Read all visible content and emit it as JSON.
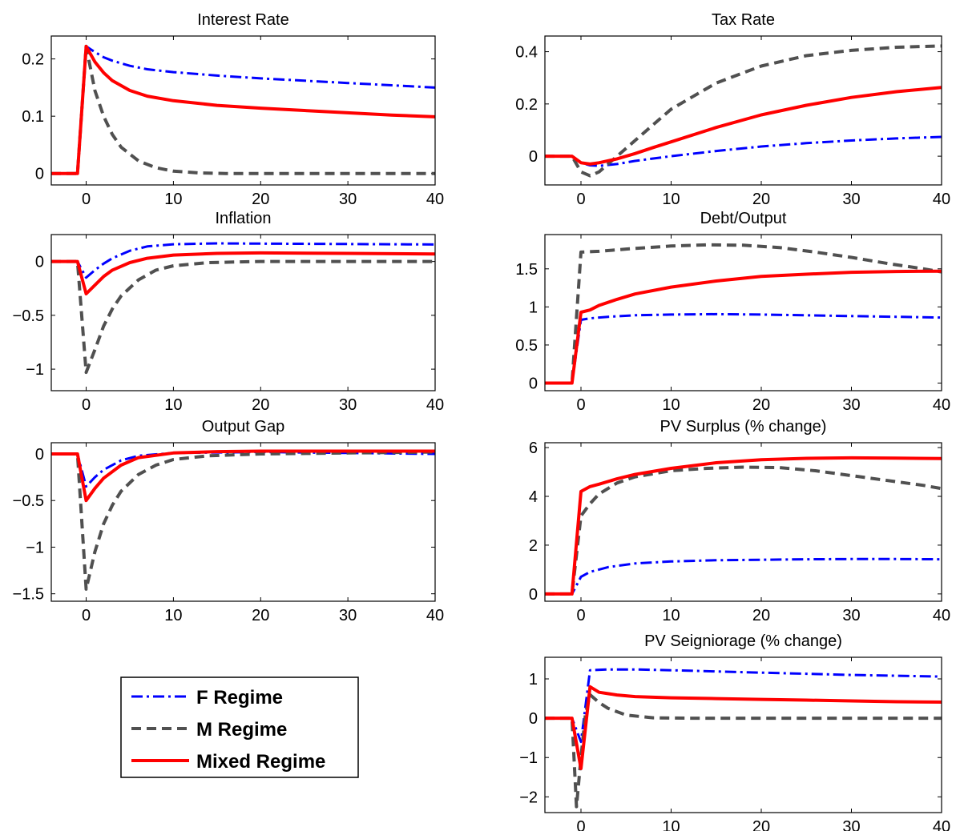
{
  "colors": {
    "f_regime": "#0000ff",
    "m_regime": "#505050",
    "mixed_regime": "#ff0000"
  },
  "legend": {
    "entries": [
      {
        "label": "F Regime",
        "series": "f",
        "style": "dash-dot"
      },
      {
        "label": "M Regime",
        "series": "m",
        "style": "dashed"
      },
      {
        "label": "Mixed Regime",
        "series": "mixed",
        "style": "solid"
      }
    ]
  },
  "chart_data": [
    {
      "type": "line",
      "title": "Interest Rate",
      "xlim": [
        -4,
        40
      ],
      "ylim": [
        -0.02,
        0.24
      ],
      "xticks": [
        0,
        10,
        20,
        30,
        40
      ],
      "yticks": [
        0,
        0.1,
        0.2
      ],
      "ytick_labels": [
        "0",
        "0.1",
        "0.2"
      ],
      "series": [
        {
          "key": "f",
          "x": [
            -4,
            -1,
            0,
            1,
            2,
            3,
            5,
            7,
            10,
            15,
            20,
            25,
            30,
            35,
            40
          ],
          "y": [
            0,
            0,
            0.222,
            0.212,
            0.203,
            0.197,
            0.188,
            0.182,
            0.177,
            0.171,
            0.166,
            0.162,
            0.158,
            0.154,
            0.15
          ]
        },
        {
          "key": "m",
          "x": [
            -4,
            -1,
            0,
            1,
            2,
            3,
            4,
            6,
            8,
            10,
            13,
            16,
            20,
            30,
            40
          ],
          "y": [
            0,
            0,
            0.222,
            0.145,
            0.1,
            0.068,
            0.046,
            0.022,
            0.01,
            0.004,
            0.001,
            0,
            0,
            0,
            0
          ]
        },
        {
          "key": "mixed",
          "x": [
            -4,
            -1,
            0,
            1,
            2,
            3,
            5,
            7,
            10,
            15,
            20,
            25,
            30,
            35,
            40
          ],
          "y": [
            0,
            0,
            0.222,
            0.195,
            0.176,
            0.162,
            0.145,
            0.135,
            0.127,
            0.119,
            0.114,
            0.11,
            0.106,
            0.102,
            0.099
          ]
        }
      ]
    },
    {
      "type": "line",
      "title": "Tax Rate",
      "xlim": [
        -4,
        40
      ],
      "ylim": [
        -0.11,
        0.46
      ],
      "xticks": [
        0,
        10,
        20,
        30,
        40
      ],
      "yticks": [
        0,
        0.2,
        0.4
      ],
      "ytick_labels": [
        "0",
        "0.2",
        "0.4"
      ],
      "series": [
        {
          "key": "f",
          "x": [
            -4,
            -1,
            0,
            1,
            2,
            4,
            6,
            10,
            15,
            20,
            25,
            30,
            35,
            40
          ],
          "y": [
            0,
            0,
            -0.025,
            -0.035,
            -0.037,
            -0.03,
            -0.018,
            0.0,
            0.02,
            0.037,
            0.05,
            0.06,
            0.068,
            0.074
          ]
        },
        {
          "key": "m",
          "x": [
            -4,
            -1,
            0,
            1,
            2,
            3,
            4,
            6,
            8,
            10,
            15,
            20,
            25,
            30,
            35,
            40
          ],
          "y": [
            0,
            0,
            -0.06,
            -0.075,
            -0.06,
            -0.03,
            0,
            0.06,
            0.12,
            0.18,
            0.28,
            0.345,
            0.385,
            0.405,
            0.417,
            0.422
          ]
        },
        {
          "key": "mixed",
          "x": [
            -4,
            -1,
            0,
            1,
            2,
            4,
            6,
            8,
            10,
            15,
            20,
            25,
            30,
            35,
            40
          ],
          "y": [
            0,
            0,
            -0.025,
            -0.03,
            -0.025,
            -0.01,
            0.01,
            0.033,
            0.055,
            0.11,
            0.158,
            0.195,
            0.225,
            0.247,
            0.263
          ]
        }
      ]
    },
    {
      "type": "line",
      "title": "Inflation",
      "xlim": [
        -4,
        40
      ],
      "ylim": [
        -1.2,
        0.25
      ],
      "xticks": [
        0,
        10,
        20,
        30,
        40
      ],
      "yticks": [
        -1,
        -0.5,
        0
      ],
      "ytick_labels": [
        "−1",
        "−0.5",
        "0"
      ],
      "series": [
        {
          "key": "f",
          "x": [
            -4,
            -1,
            0,
            1,
            2,
            3,
            5,
            7,
            10,
            15,
            20,
            30,
            40
          ],
          "y": [
            0,
            0,
            -0.15,
            -0.08,
            -0.02,
            0.03,
            0.1,
            0.14,
            0.16,
            0.168,
            0.166,
            0.162,
            0.158
          ]
        },
        {
          "key": "m",
          "x": [
            -4,
            -1,
            0,
            1,
            2,
            3,
            4,
            6,
            8,
            10,
            14,
            20,
            30,
            40
          ],
          "y": [
            0,
            0,
            -1.03,
            -0.82,
            -0.6,
            -0.44,
            -0.32,
            -0.17,
            -0.08,
            -0.04,
            -0.01,
            0,
            0,
            0
          ]
        },
        {
          "key": "mixed",
          "x": [
            -4,
            -1,
            0,
            1,
            2,
            3,
            5,
            7,
            10,
            15,
            20,
            30,
            40
          ],
          "y": [
            0,
            0,
            -0.3,
            -0.22,
            -0.14,
            -0.08,
            -0.01,
            0.03,
            0.06,
            0.075,
            0.08,
            0.075,
            0.07
          ]
        }
      ]
    },
    {
      "type": "line",
      "title": "Debt/Output",
      "xlim": [
        -4,
        40
      ],
      "ylim": [
        -0.1,
        1.95
      ],
      "xticks": [
        0,
        10,
        20,
        30,
        40
      ],
      "yticks": [
        0,
        0.5,
        1,
        1.5
      ],
      "ytick_labels": [
        "0",
        "0.5",
        "1",
        "1.5"
      ],
      "series": [
        {
          "key": "f",
          "x": [
            -4,
            -1,
            0,
            1,
            3,
            6,
            10,
            15,
            20,
            25,
            30,
            35,
            40
          ],
          "y": [
            0,
            0,
            0.83,
            0.85,
            0.87,
            0.89,
            0.9,
            0.905,
            0.9,
            0.89,
            0.88,
            0.87,
            0.86
          ]
        },
        {
          "key": "m",
          "x": [
            -4,
            -1,
            0,
            2,
            5,
            10,
            14,
            18,
            22,
            26,
            30,
            34,
            38,
            40
          ],
          "y": [
            0,
            0,
            1.72,
            1.73,
            1.76,
            1.8,
            1.815,
            1.81,
            1.78,
            1.72,
            1.65,
            1.57,
            1.5,
            1.46
          ]
        },
        {
          "key": "mixed",
          "x": [
            -4,
            -1,
            0,
            1,
            2,
            4,
            6,
            10,
            15,
            20,
            25,
            30,
            35,
            40
          ],
          "y": [
            0,
            0,
            0.93,
            0.96,
            1.02,
            1.1,
            1.17,
            1.26,
            1.34,
            1.4,
            1.43,
            1.455,
            1.465,
            1.47
          ]
        }
      ]
    },
    {
      "type": "line",
      "title": "Output Gap",
      "xlim": [
        -4,
        40
      ],
      "ylim": [
        -1.58,
        0.12
      ],
      "xticks": [
        0,
        10,
        20,
        30,
        40
      ],
      "yticks": [
        -1.5,
        -1,
        -0.5,
        0
      ],
      "ytick_labels": [
        "−1.5",
        "−1",
        "−0.5",
        "0"
      ],
      "series": [
        {
          "key": "f",
          "x": [
            -4,
            -1,
            0,
            1,
            2,
            4,
            6,
            10,
            20,
            30,
            40
          ],
          "y": [
            0,
            0,
            -0.35,
            -0.25,
            -0.17,
            -0.07,
            -0.02,
            0.01,
            0.02,
            0.01,
            0.0
          ]
        },
        {
          "key": "m",
          "x": [
            -4,
            -1,
            0,
            1,
            2,
            3,
            4,
            6,
            8,
            10,
            14,
            20,
            30,
            40
          ],
          "y": [
            0,
            0,
            -1.45,
            -1.05,
            -0.75,
            -0.55,
            -0.4,
            -0.22,
            -0.12,
            -0.06,
            -0.02,
            0.0,
            0.01,
            0.02
          ]
        },
        {
          "key": "mixed",
          "x": [
            -4,
            -1,
            0,
            1,
            2,
            4,
            6,
            10,
            15,
            20,
            30,
            40
          ],
          "y": [
            0,
            0,
            -0.5,
            -0.37,
            -0.26,
            -0.12,
            -0.04,
            0.01,
            0.025,
            0.03,
            0.03,
            0.03
          ]
        }
      ]
    },
    {
      "type": "line",
      "title": "PV Surplus (% change)",
      "xlim": [
        -4,
        40
      ],
      "ylim": [
        -0.3,
        6.2
      ],
      "xticks": [
        0,
        10,
        20,
        30,
        40
      ],
      "yticks": [
        0,
        2,
        4,
        6
      ],
      "ytick_labels": [
        "0",
        "2",
        "4",
        "6"
      ],
      "series": [
        {
          "key": "f",
          "x": [
            -4,
            -1,
            0,
            1,
            3,
            6,
            10,
            15,
            20,
            25,
            30,
            35,
            40
          ],
          "y": [
            0,
            0,
            0.7,
            0.9,
            1.1,
            1.25,
            1.33,
            1.38,
            1.4,
            1.42,
            1.43,
            1.43,
            1.42
          ]
        },
        {
          "key": "m",
          "x": [
            -4,
            -1,
            0,
            1,
            2,
            4,
            6,
            10,
            14,
            18,
            22,
            26,
            30,
            34,
            38,
            40
          ],
          "y": [
            0,
            0,
            3.2,
            3.7,
            4.1,
            4.55,
            4.8,
            5.05,
            5.15,
            5.2,
            5.18,
            5.05,
            4.85,
            4.65,
            4.45,
            4.32
          ]
        },
        {
          "key": "mixed",
          "x": [
            -4,
            -1,
            0,
            1,
            2,
            4,
            6,
            10,
            15,
            20,
            25,
            30,
            35,
            40
          ],
          "y": [
            0,
            0,
            4.2,
            4.4,
            4.5,
            4.72,
            4.9,
            5.15,
            5.38,
            5.5,
            5.56,
            5.58,
            5.57,
            5.55
          ]
        }
      ]
    },
    {
      "type": "line",
      "title": "PV Seigniorage (% change)",
      "xlim": [
        -4,
        40
      ],
      "ylim": [
        -2.4,
        1.55
      ],
      "xticks": [
        0,
        10,
        20,
        30,
        40
      ],
      "yticks": [
        -2,
        -1,
        0,
        1
      ],
      "ytick_labels": [
        "−2",
        "−1",
        "0",
        "1"
      ],
      "series": [
        {
          "key": "f",
          "x": [
            -4,
            -1,
            0,
            1,
            3,
            6,
            10,
            15,
            20,
            25,
            30,
            35,
            40
          ],
          "y": [
            0,
            0,
            -0.6,
            1.22,
            1.24,
            1.24,
            1.22,
            1.19,
            1.16,
            1.13,
            1.1,
            1.08,
            1.06
          ]
        },
        {
          "key": "m",
          "x": [
            -4,
            -1,
            -0.5,
            0,
            0.5,
            1,
            2,
            3,
            5,
            8,
            12,
            20,
            30,
            40
          ],
          "y": [
            0,
            0,
            -2.25,
            -1.0,
            0.1,
            0.6,
            0.4,
            0.25,
            0.08,
            0.01,
            0,
            0,
            0,
            0
          ]
        },
        {
          "key": "mixed",
          "x": [
            -4,
            -1,
            0,
            1,
            2,
            4,
            6,
            10,
            15,
            20,
            25,
            30,
            35,
            40
          ],
          "y": [
            0,
            0,
            -1.28,
            0.8,
            0.66,
            0.59,
            0.55,
            0.52,
            0.5,
            0.48,
            0.46,
            0.44,
            0.42,
            0.41
          ]
        }
      ]
    }
  ]
}
